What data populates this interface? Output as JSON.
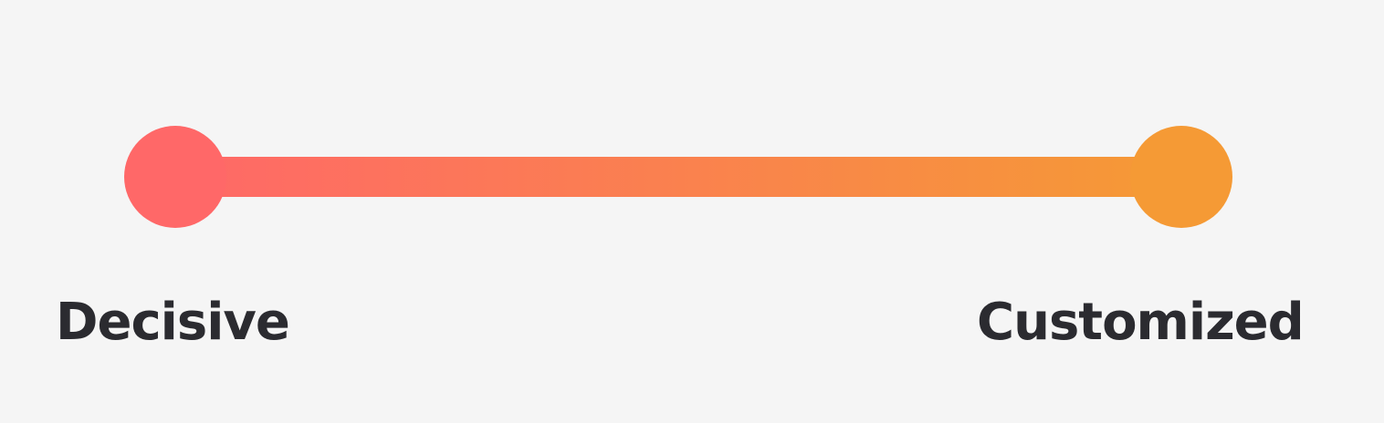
{
  "spectrum": {
    "start": {
      "label": "Decisive",
      "color": "#ff6868"
    },
    "end": {
      "label": "Customized",
      "color": "#f59a35"
    }
  }
}
